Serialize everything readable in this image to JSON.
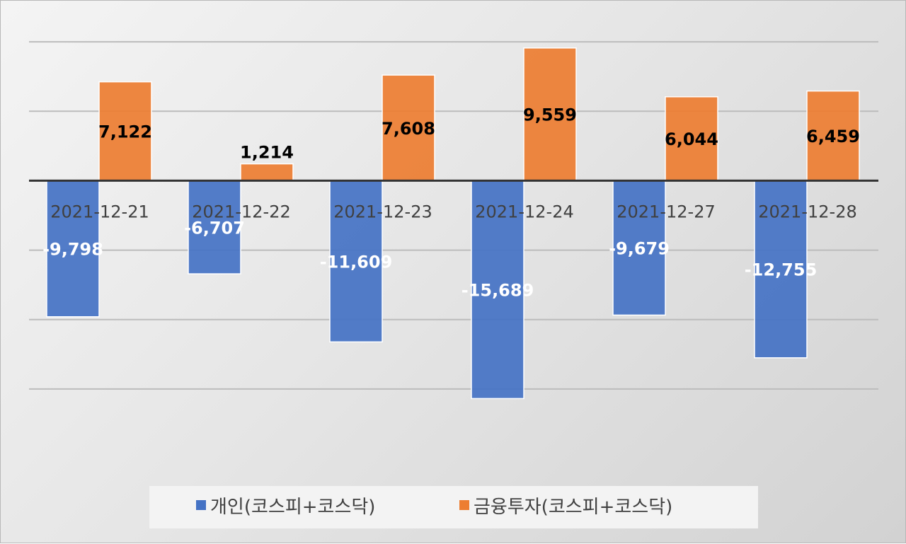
{
  "chart_data": {
    "type": "bar",
    "title": "",
    "xlabel": "",
    "ylabel": "",
    "categories": [
      "2021-12-21",
      "2021-12-22",
      "2021-12-23",
      "2021-12-24",
      "2021-12-27",
      "2021-12-28"
    ],
    "series": [
      {
        "name": "개인(코스피+코스닥)",
        "color": "#4472C4",
        "label_color": "#ffffff",
        "values": [
          -9798,
          -6707,
          -11609,
          -15689,
          -9679,
          -12755
        ]
      },
      {
        "name": "금융투자(코스피+코스닥)",
        "color": "#ED7D31",
        "label_color": "#000000",
        "values": [
          7122,
          1214,
          7608,
          9559,
          6044,
          6459
        ]
      }
    ],
    "data_labels": [
      [
        "-9,798",
        "-6,707",
        "-11,609",
        "-15,689",
        "-9,679",
        "-12,755"
      ],
      [
        "7,122",
        "1,214",
        "7,608",
        "9,559",
        "6,044",
        "6,459"
      ]
    ],
    "ylim": [
      -20000,
      15000
    ],
    "grid_step": 5000,
    "grid": true,
    "axis_labels_visible": false,
    "legend_position": "bottom"
  }
}
